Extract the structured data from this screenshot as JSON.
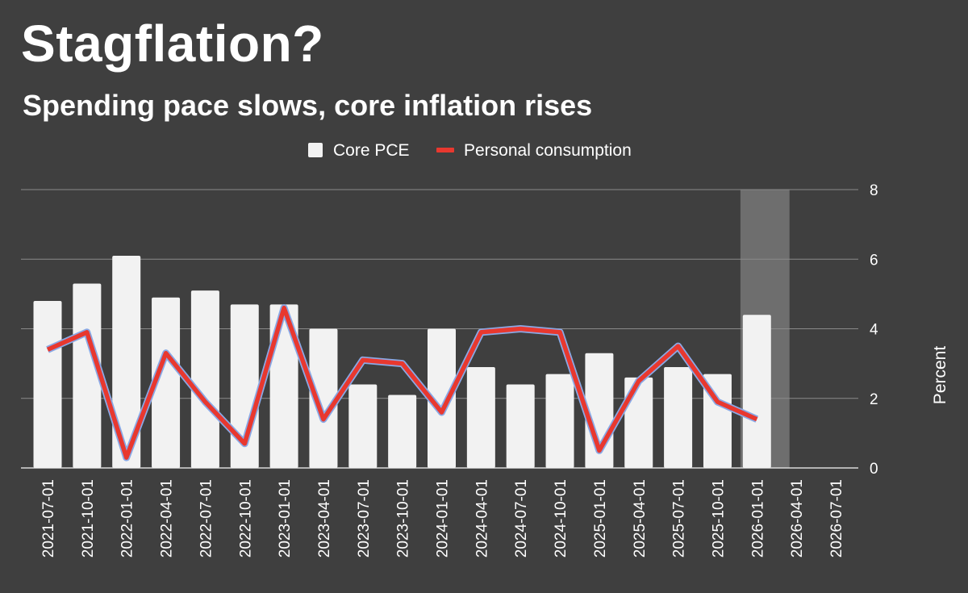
{
  "chart_data": {
    "type": "bar",
    "title": "Stagflation?",
    "subtitle": "Spending pace slows, core inflation rises",
    "ylabel": "Percent",
    "ylim": [
      0,
      8
    ],
    "yticks": [
      0,
      2,
      4,
      6,
      8
    ],
    "grid": true,
    "legend_position": "top-center",
    "highlight_category": "2026-01-01",
    "categories": [
      "2021-07-01",
      "2021-10-01",
      "2022-01-01",
      "2022-04-01",
      "2022-07-01",
      "2022-10-01",
      "2023-01-01",
      "2023-04-01",
      "2023-07-01",
      "2023-10-01",
      "2024-01-01",
      "2024-04-01",
      "2024-07-01",
      "2024-10-01",
      "2025-01-01",
      "2025-04-01",
      "2025-07-01",
      "2025-10-01",
      "2026-01-01",
      "2026-04-01",
      "2026-07-01"
    ],
    "series": [
      {
        "name": "Core PCE",
        "type": "bar",
        "color": "#f2f2f2",
        "values": [
          4.8,
          5.3,
          6.1,
          4.9,
          5.1,
          4.7,
          4.7,
          4.0,
          2.4,
          2.1,
          4.0,
          2.9,
          2.4,
          2.7,
          3.3,
          2.6,
          2.9,
          2.7,
          4.4,
          null,
          null
        ]
      },
      {
        "name": "Personal consumption",
        "type": "line",
        "color": "#e8382f",
        "outline_color": "#8aa9e6",
        "values": [
          3.4,
          3.9,
          0.3,
          3.3,
          1.9,
          0.7,
          4.6,
          1.4,
          3.1,
          3.0,
          1.6,
          3.9,
          4.0,
          3.9,
          0.5,
          2.5,
          3.5,
          1.9,
          1.4,
          null,
          null
        ]
      }
    ]
  },
  "colors": {
    "background": "#3f3f3f",
    "gridline": "#8a8a8a",
    "highlight_band": "#6e6e6e"
  }
}
